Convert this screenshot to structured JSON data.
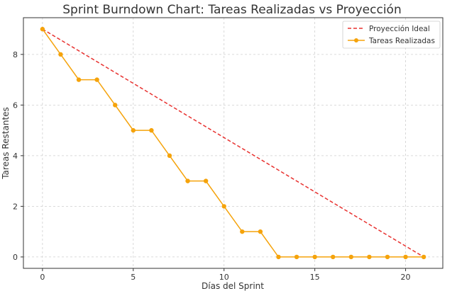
{
  "chart_data": {
    "type": "line",
    "title": "Sprint Burndown Chart: Tareas Realizadas vs Proyección",
    "xlabel": "Días del Sprint",
    "ylabel": "Tareas Restantes",
    "xlim": [
      -1.05,
      22.05
    ],
    "ylim": [
      -0.45,
      9.45
    ],
    "xticks": [
      0,
      5,
      10,
      15,
      20
    ],
    "yticks": [
      0,
      2,
      4,
      6,
      8
    ],
    "grid": true,
    "legend_position": "top-right",
    "series": [
      {
        "name": "Proyección Ideal",
        "style": "dashed",
        "color": "#e8312f",
        "x": [
          0,
          21
        ],
        "y": [
          9,
          0
        ]
      },
      {
        "name": "Tareas Realizadas",
        "style": "solid-markers",
        "color": "#f5a30b",
        "x": [
          0,
          1,
          2,
          3,
          4,
          5,
          6,
          7,
          8,
          9,
          10,
          11,
          12,
          13,
          14,
          15,
          16,
          17,
          18,
          19,
          20,
          21
        ],
        "y": [
          9,
          8,
          7,
          7,
          6,
          5,
          5,
          4,
          3,
          3,
          2,
          1,
          1,
          0,
          0,
          0,
          0,
          0,
          0,
          0,
          0,
          0
        ]
      }
    ]
  }
}
